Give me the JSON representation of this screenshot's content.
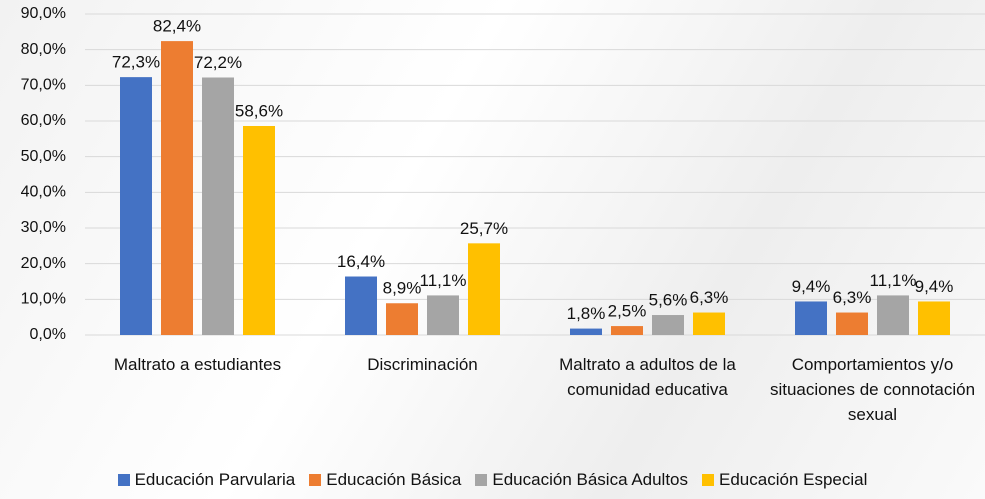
{
  "chart_data": {
    "type": "bar",
    "categories": [
      "Maltrato a estudiantes",
      "Discriminación",
      "Maltrato a adultos de la comunidad educativa",
      "Comportamientos y/o situaciones de connotación sexual"
    ],
    "series": [
      {
        "name": "Educación Parvularia",
        "color": "#4472c4",
        "values": [
          72.3,
          16.4,
          1.8,
          9.4
        ],
        "value_labels": [
          "72,3%",
          "16,4%",
          "1,8%",
          "9,4%"
        ]
      },
      {
        "name": "Educación Básica",
        "color": "#ed7d31",
        "values": [
          82.4,
          8.9,
          2.5,
          6.3
        ],
        "value_labels": [
          "82,4%",
          "8,9%",
          "2,5%",
          "6,3%"
        ]
      },
      {
        "name": "Educación Básica Adultos",
        "color": "#a5a5a5",
        "values": [
          72.2,
          11.1,
          5.6,
          11.1
        ],
        "value_labels": [
          "72,2%",
          "11,1%",
          "5,6%",
          "11,1%"
        ]
      },
      {
        "name": "Educación Especial",
        "color": "#ffc000",
        "values": [
          58.6,
          25.7,
          6.3,
          9.4
        ],
        "value_labels": [
          "58,6%",
          "25,7%",
          "6,3%",
          "9,4%"
        ]
      }
    ],
    "ylim": [
      0,
      90
    ],
    "yticks": [
      {
        "value": 0,
        "label": "0,0%"
      },
      {
        "value": 10,
        "label": "10,0%"
      },
      {
        "value": 20,
        "label": "20,0%"
      },
      {
        "value": 30,
        "label": "30,0%"
      },
      {
        "value": 40,
        "label": "40,0%"
      },
      {
        "value": 50,
        "label": "50,0%"
      },
      {
        "value": 60,
        "label": "60,0%"
      },
      {
        "value": 70,
        "label": "70,0%"
      },
      {
        "value": 80,
        "label": "80,0%"
      },
      {
        "value": 90,
        "label": "90,0%"
      }
    ],
    "grid": true,
    "legend": "bottom"
  }
}
